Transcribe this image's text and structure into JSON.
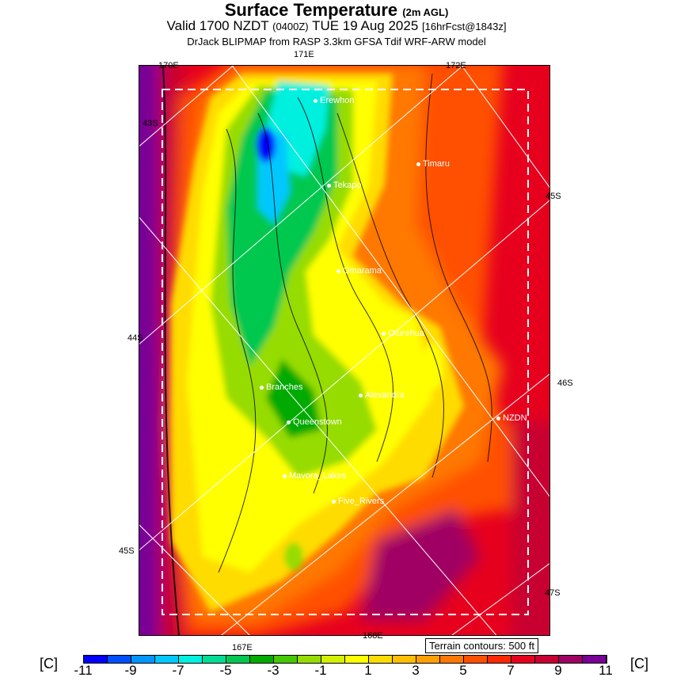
{
  "header": {
    "title": "Surface Temperature",
    "title_suffix": "(2m AGL)",
    "valid_prefix": "Valid 1700 NZDT",
    "valid_utc": "(0400Z)",
    "valid_date": "TUE 19 Aug 2025",
    "forecast_info": "[16hrFcst@1843z]",
    "subtitle": "DrJack BLIPMAP from RASP 3.3km GFSA Tdif WRF-ARW model"
  },
  "axis_labels": {
    "lon_170": "170E",
    "lon_171": "171E",
    "lon_172": "172E",
    "lat_43": "43S",
    "lat_45_right": "45S",
    "lat_44": "44S",
    "lat_46": "46S",
    "lat_45_left": "45S",
    "lat_47": "47S",
    "lon_167": "167E",
    "lon_168": "168E"
  },
  "cities": [
    {
      "name": "Erewhon"
    },
    {
      "name": "Timaru"
    },
    {
      "name": "Tekapo"
    },
    {
      "name": "Omarama"
    },
    {
      "name": "Oturehua"
    },
    {
      "name": "Alexandra"
    },
    {
      "name": "Branches"
    },
    {
      "name": "Queenstown"
    },
    {
      "name": "NZDN"
    },
    {
      "name": "Mavora_Lakes"
    },
    {
      "name": "Five_Rivers"
    }
  ],
  "terrain_note": "Terrain contours: 500 ft",
  "colorbar": {
    "unit": "[C]",
    "ticks": [
      "-11",
      "-9",
      "-7",
      "-5",
      "-3",
      "-1",
      "1",
      "3",
      "5",
      "7",
      "9",
      "11"
    ],
    "colors": [
      "#0000ff",
      "#0050ff",
      "#0096ff",
      "#00c8ff",
      "#00f0e0",
      "#00dc96",
      "#00c850",
      "#00aa00",
      "#46c800",
      "#96dc00",
      "#d2f000",
      "#ffff00",
      "#ffdc00",
      "#ffbe00",
      "#ffa000",
      "#ff7800",
      "#ff5000",
      "#ff2800",
      "#e6001e",
      "#c80032",
      "#a00064",
      "#780096"
    ]
  }
}
